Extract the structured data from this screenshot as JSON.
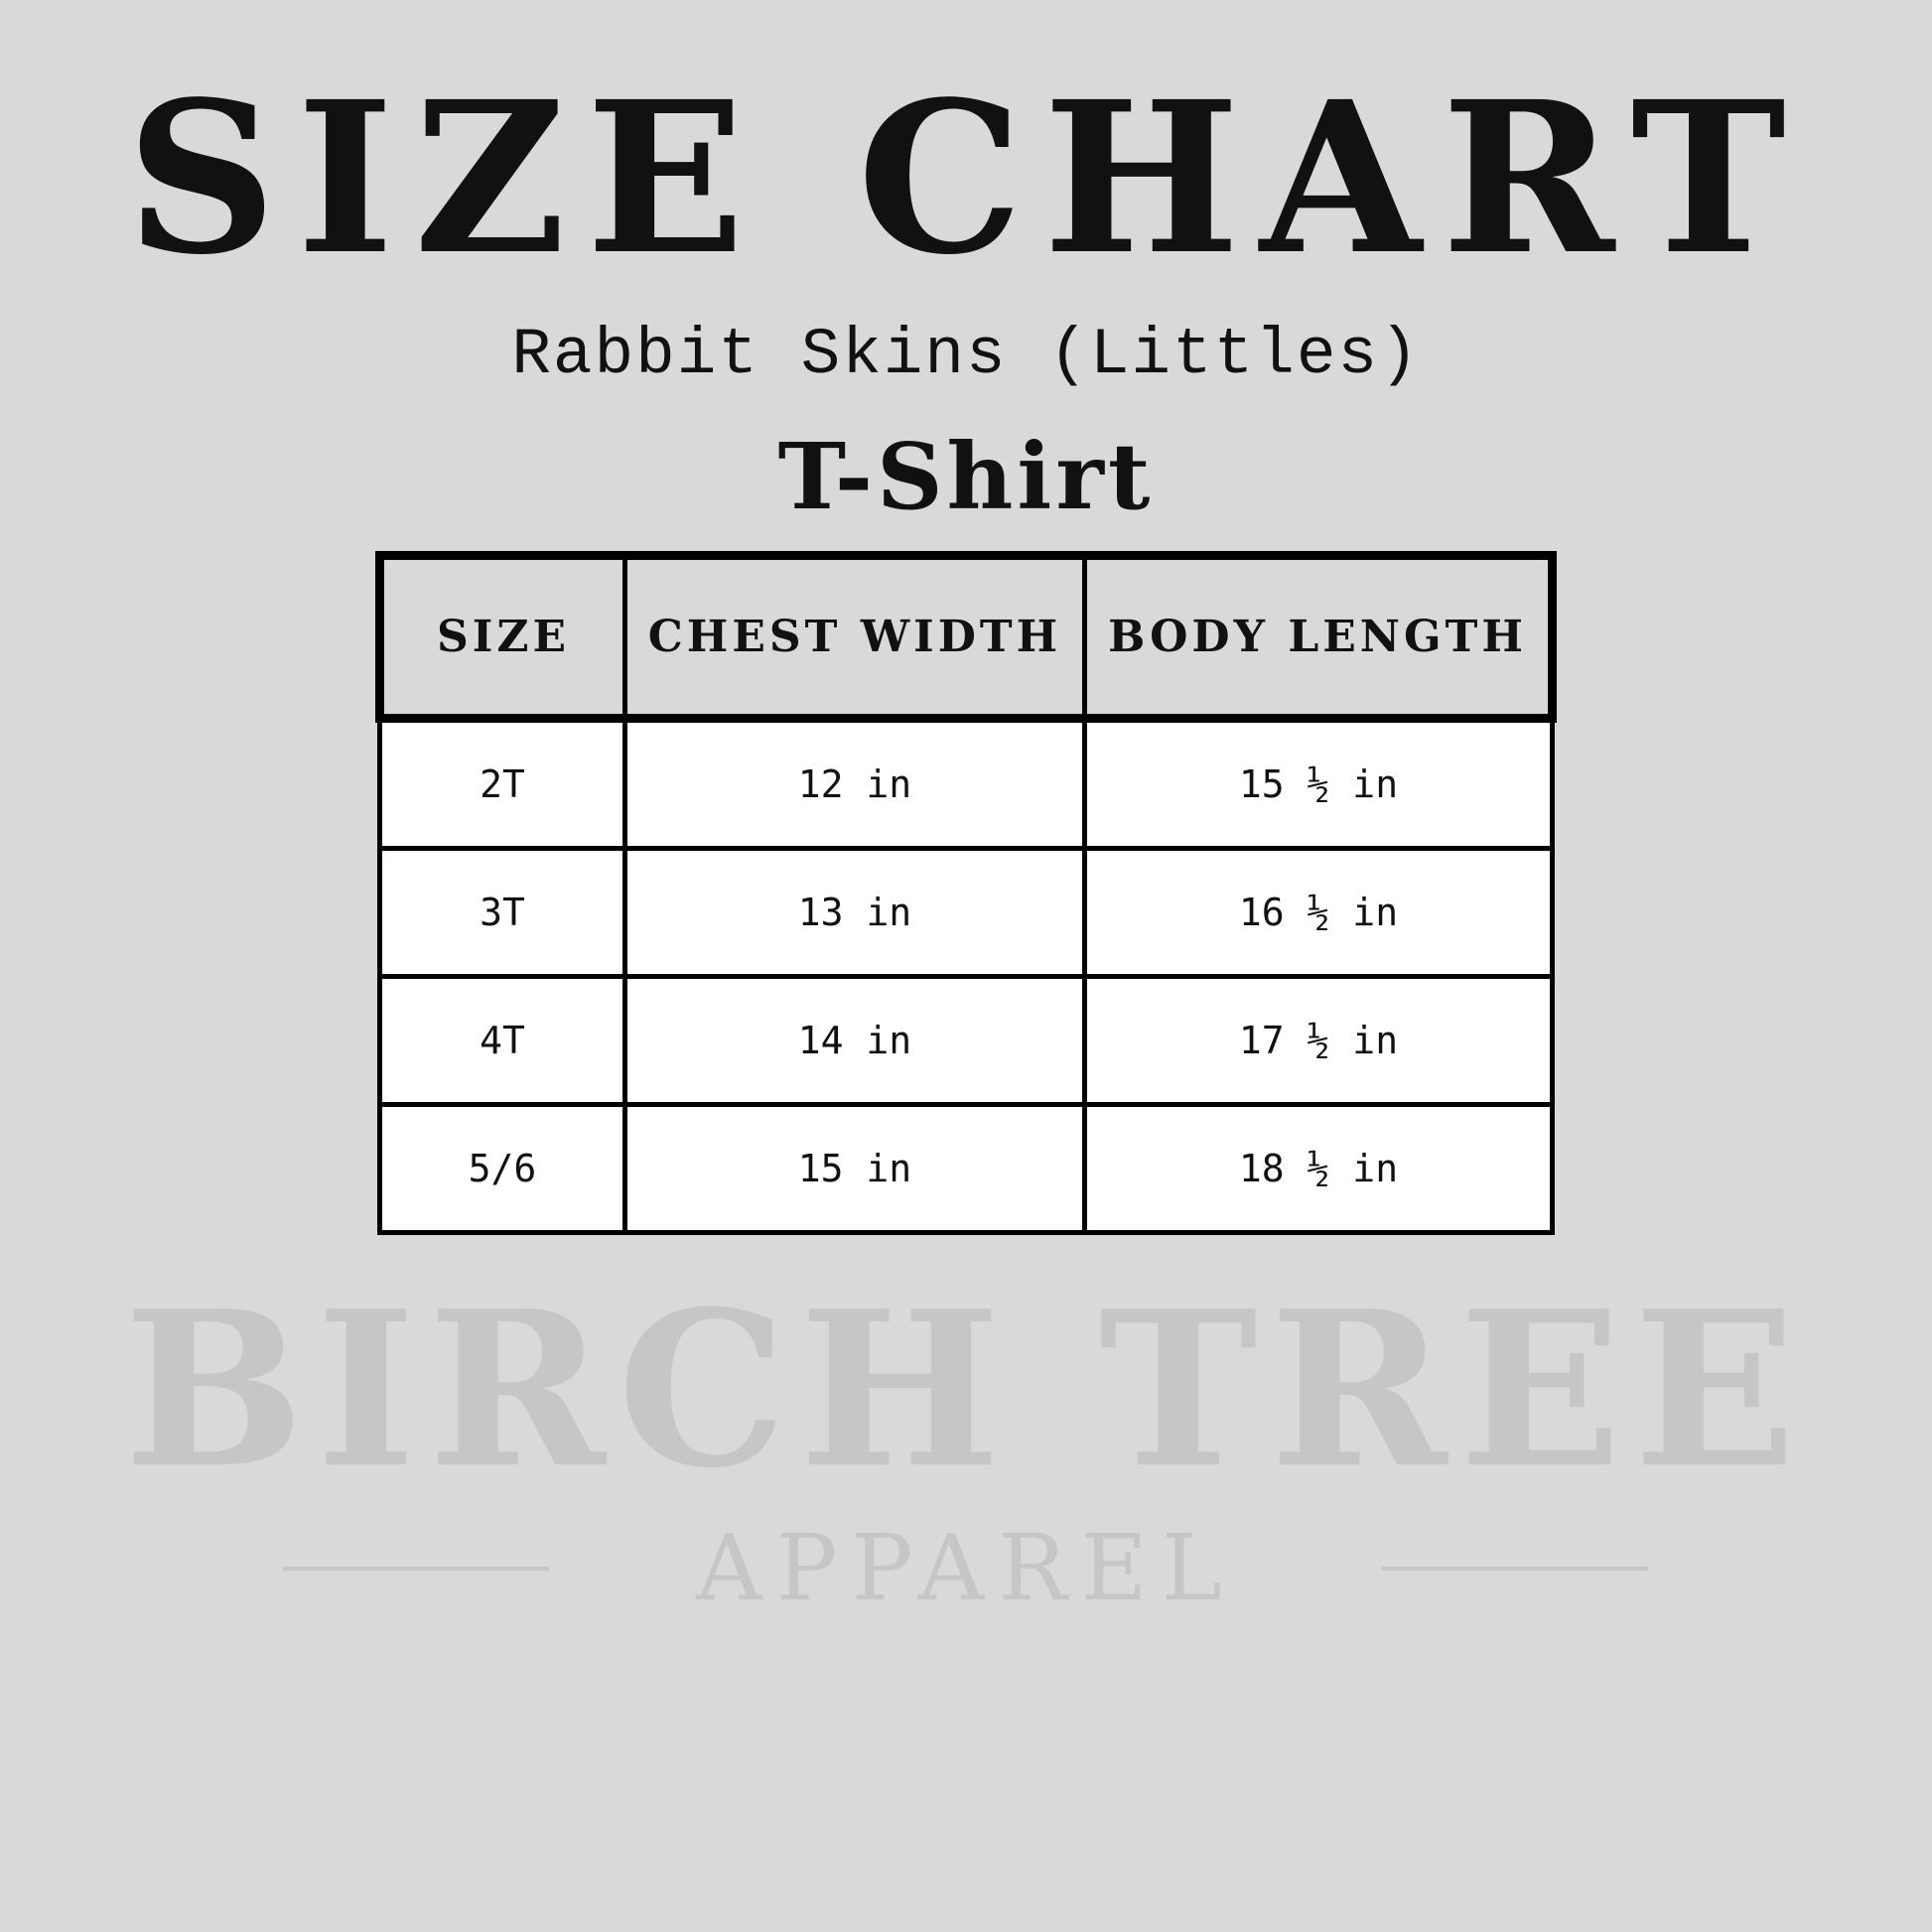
{
  "title": "SIZE CHART",
  "subtitle": "Rabbit Skins (Littles)",
  "product": "T-Shirt",
  "table": {
    "headers": [
      "SIZE",
      "CHEST WIDTH",
      "BODY LENGTH"
    ],
    "rows": [
      [
        "2T",
        "12 in",
        "15 ½ in"
      ],
      [
        "3T",
        "13 in",
        "16 ½ in"
      ],
      [
        "4T",
        "14 in",
        "17 ½ in"
      ],
      [
        "5/6",
        "15 in",
        "18 ½ in"
      ]
    ]
  },
  "watermark": {
    "brand": "BIRCH TREE",
    "tagline": "APPAREL"
  }
}
